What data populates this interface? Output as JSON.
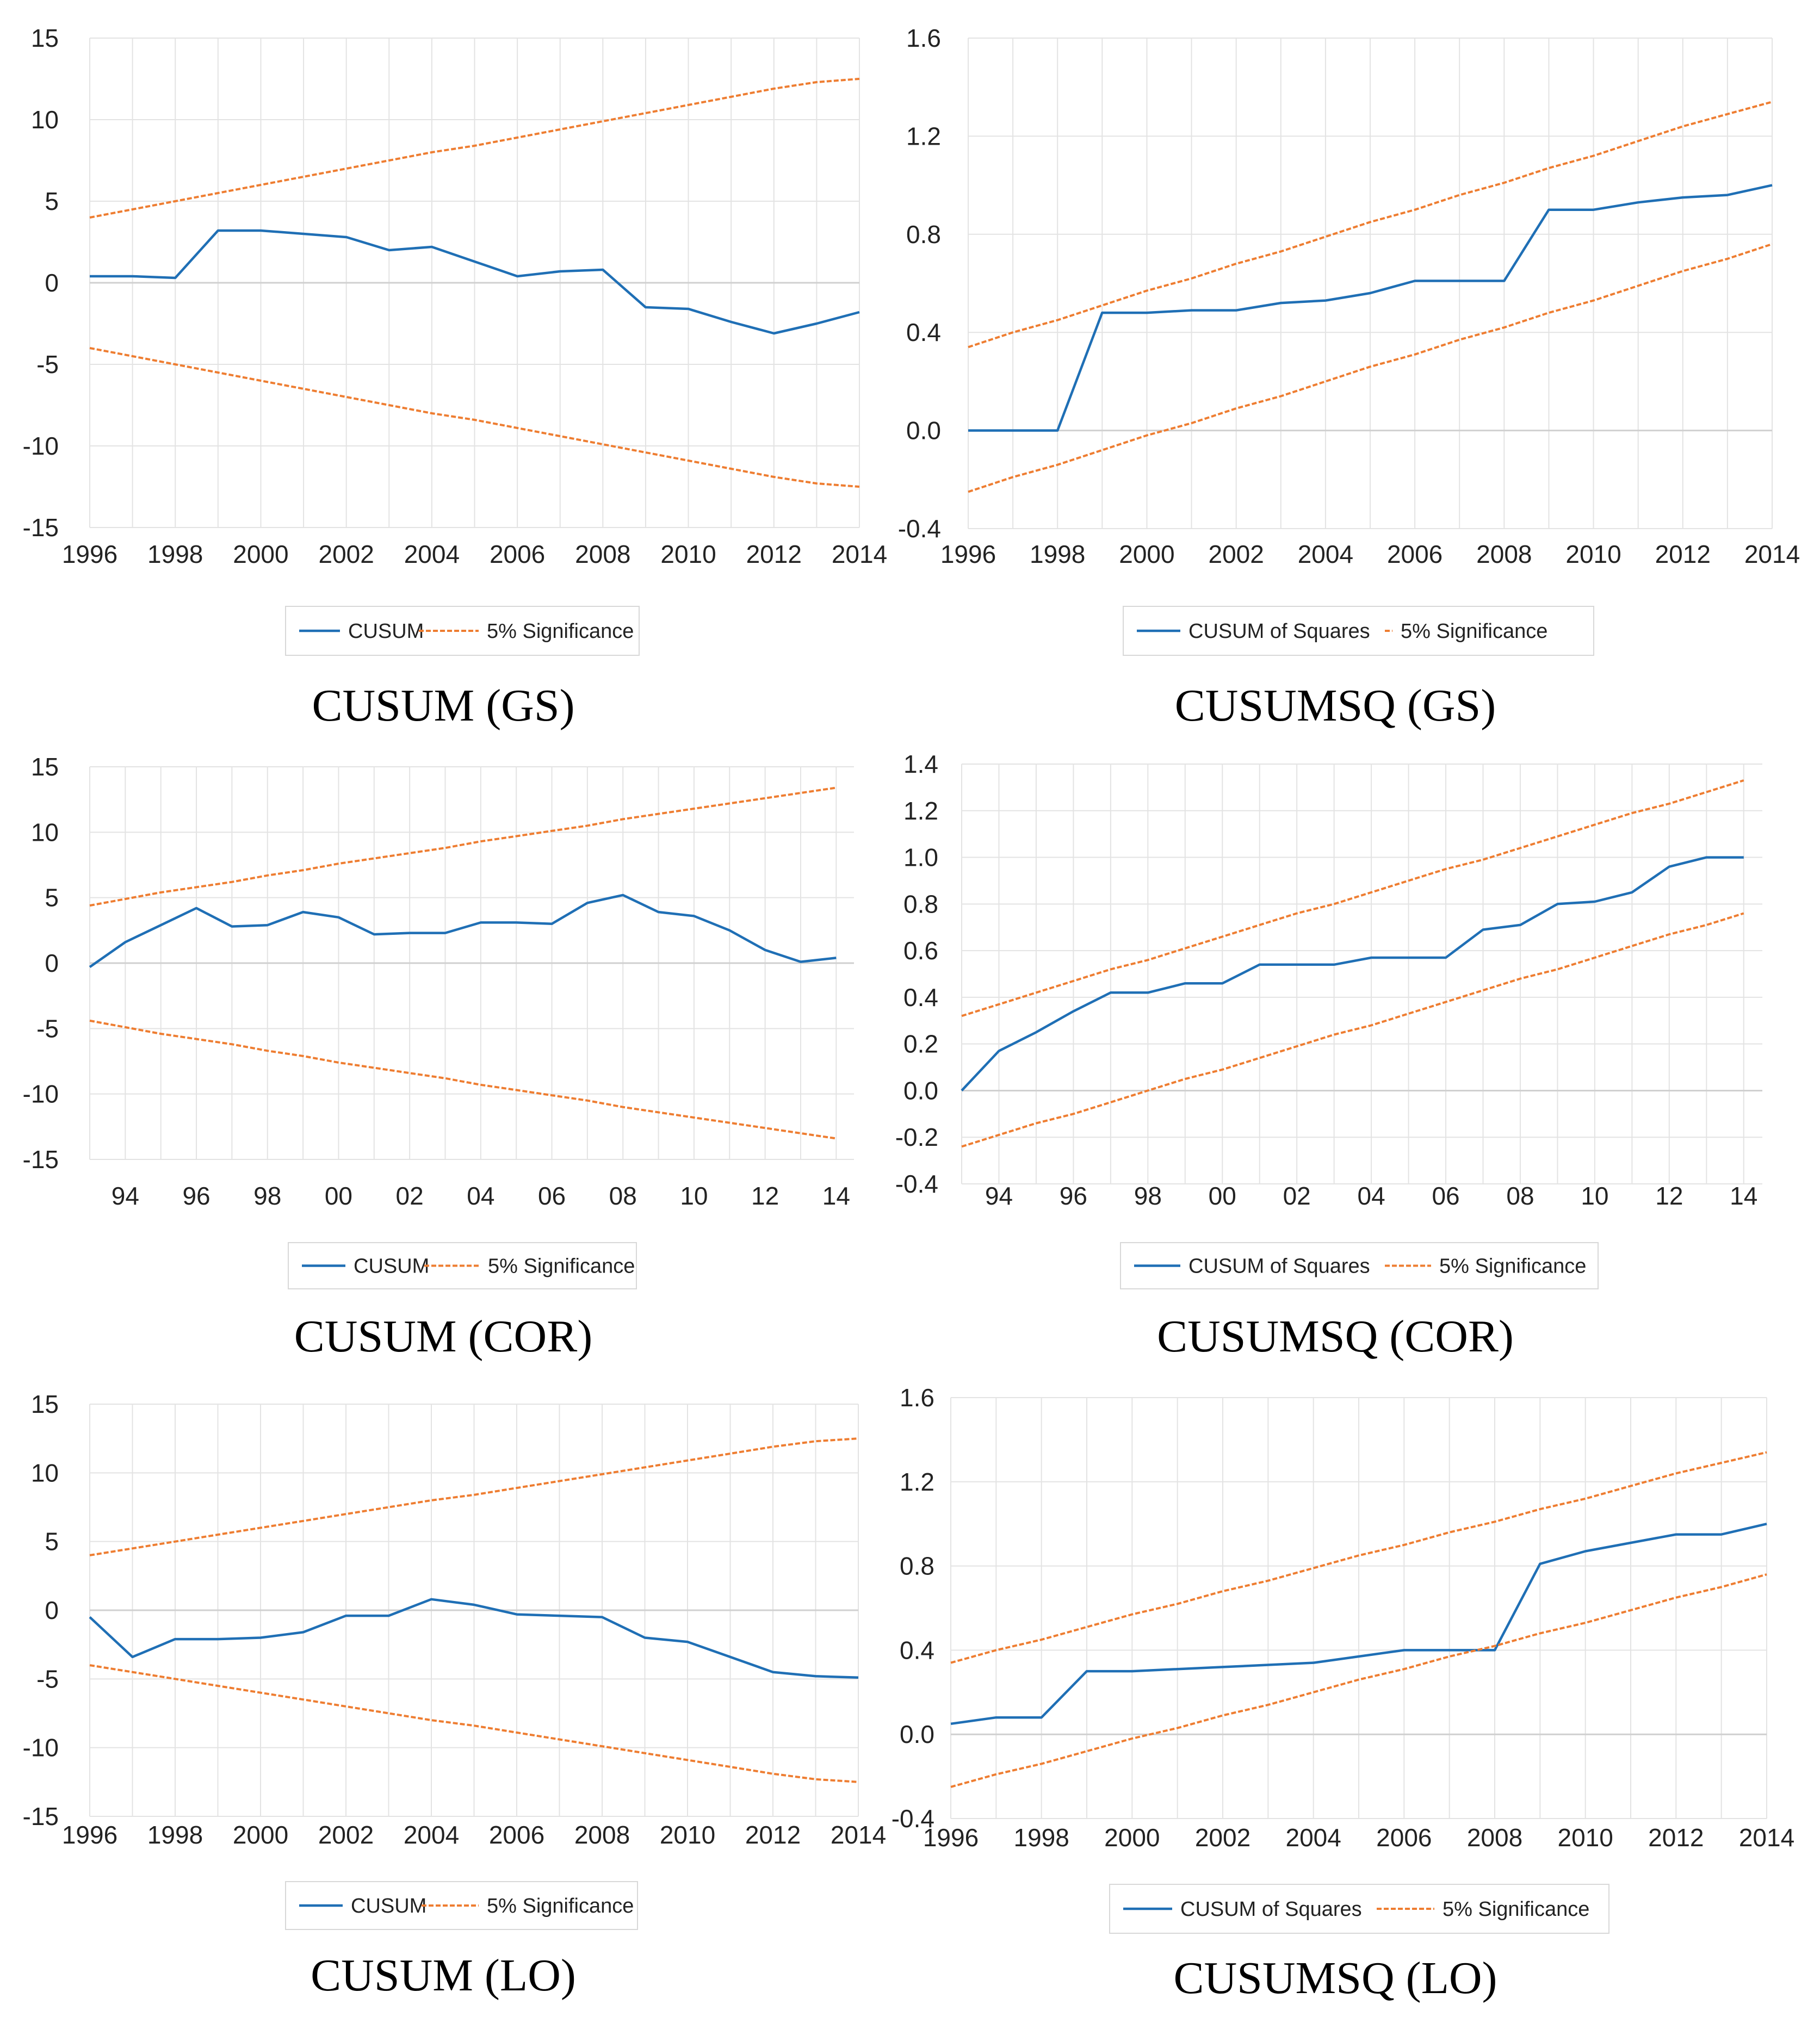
{
  "figure": {
    "colors": {
      "cusum": "#1f6fb5",
      "bound": "#ee7d31",
      "grid": "#e3e3e3",
      "axis": "#d0d0d0"
    }
  },
  "chart_data": [
    {
      "type": "line",
      "caption": "CUSUM (GS)",
      "x": [
        1996,
        1997,
        1998,
        1999,
        2000,
        2001,
        2002,
        2003,
        2004,
        2005,
        2006,
        2007,
        2008,
        2009,
        2010,
        2011,
        2012,
        2013,
        2014
      ],
      "xlim": [
        1996,
        2014
      ],
      "xticks": [
        "1996",
        "1998",
        "2000",
        "2002",
        "2004",
        "2006",
        "2008",
        "2010",
        "2012",
        "2014"
      ],
      "xtick_values": [
        1996,
        1998,
        2000,
        2002,
        2004,
        2006,
        2008,
        2010,
        2012,
        2014
      ],
      "ylim": [
        -15,
        15
      ],
      "yticks": [
        15,
        10,
        5,
        0,
        -5,
        -10,
        -15
      ],
      "ytick_labels": [
        "15",
        "10",
        "5",
        "0",
        "-5",
        "-10",
        "-15"
      ],
      "series": [
        {
          "name": "CUSUM",
          "style": "solid",
          "values": [
            0.4,
            0.4,
            0.3,
            3.2,
            3.2,
            3.0,
            2.8,
            2.0,
            2.2,
            1.3,
            0.4,
            0.7,
            0.8,
            -1.5,
            -1.6,
            -2.4,
            -3.1,
            -2.5,
            -1.8
          ]
        },
        {
          "name": "5% Significance",
          "style": "dashed",
          "values": [
            4.0,
            4.5,
            5.0,
            5.5,
            6.0,
            6.5,
            7.0,
            7.5,
            8.0,
            8.4,
            8.9,
            9.4,
            9.9,
            10.4,
            10.9,
            11.4,
            11.9,
            12.3,
            12.5
          ]
        },
        {
          "name": "5% Significance lower",
          "style": "dashed",
          "values": [
            -4.0,
            -4.5,
            -5.0,
            -5.5,
            -6.0,
            -6.5,
            -7.0,
            -7.5,
            -8.0,
            -8.4,
            -8.9,
            -9.4,
            -9.9,
            -10.4,
            -10.9,
            -11.4,
            -11.9,
            -12.3,
            -12.5
          ]
        }
      ],
      "legend": [
        "CUSUM",
        "5% Significance"
      ]
    },
    {
      "type": "line",
      "caption": "CUSUMSQ (GS)",
      "x": [
        1996,
        1997,
        1998,
        1999,
        2000,
        2001,
        2002,
        2003,
        2004,
        2005,
        2006,
        2007,
        2008,
        2009,
        2010,
        2011,
        2012,
        2013,
        2014
      ],
      "xlim": [
        1996,
        2014
      ],
      "xticks": [
        "1996",
        "1998",
        "2000",
        "2002",
        "2004",
        "2006",
        "2008",
        "2010",
        "2012",
        "2014"
      ],
      "xtick_values": [
        1996,
        1998,
        2000,
        2002,
        2004,
        2006,
        2008,
        2010,
        2012,
        2014
      ],
      "ylim": [
        -0.4,
        1.6
      ],
      "yticks": [
        1.6,
        1.2,
        0.8,
        0.4,
        0.0,
        -0.4
      ],
      "ytick_labels": [
        "1.6",
        "1.2",
        "0.8",
        "0.4",
        "0.0",
        "-0.4"
      ],
      "series": [
        {
          "name": "CUSUM of Squares",
          "style": "solid",
          "values": [
            0.0,
            0.0,
            0.0,
            0.48,
            0.48,
            0.49,
            0.49,
            0.52,
            0.53,
            0.56,
            0.61,
            0.61,
            0.61,
            0.9,
            0.9,
            0.93,
            0.95,
            0.96,
            1.0
          ]
        },
        {
          "name": "5% Significance",
          "style": "dashed",
          "values": [
            0.34,
            0.4,
            0.45,
            0.51,
            0.57,
            0.62,
            0.68,
            0.73,
            0.79,
            0.85,
            0.9,
            0.96,
            1.01,
            1.07,
            1.12,
            1.18,
            1.24,
            1.29,
            1.34
          ]
        },
        {
          "name": "5% Significance lower",
          "style": "dashed",
          "values": [
            -0.25,
            -0.19,
            -0.14,
            -0.08,
            -0.02,
            0.03,
            0.09,
            0.14,
            0.2,
            0.26,
            0.31,
            0.37,
            0.42,
            0.48,
            0.53,
            0.59,
            0.65,
            0.7,
            0.76
          ]
        }
      ],
      "legend": [
        "CUSUM of Squares",
        "5% Significance"
      ]
    },
    {
      "type": "line",
      "caption": "CUSUM (COR)",
      "x": [
        1993,
        1994,
        1995,
        1996,
        1997,
        1998,
        1999,
        2000,
        2001,
        2002,
        2003,
        2004,
        2005,
        2006,
        2007,
        2008,
        2009,
        2010,
        2011,
        2012,
        2013,
        2014
      ],
      "xlim": [
        1993,
        2014.5
      ],
      "xticks": [
        "94",
        "96",
        "98",
        "00",
        "02",
        "04",
        "06",
        "08",
        "10",
        "12",
        "14"
      ],
      "xtick_values": [
        1994,
        1996,
        1998,
        2000,
        2002,
        2004,
        2006,
        2008,
        2010,
        2012,
        2014
      ],
      "ylim": [
        -15,
        15
      ],
      "yticks": [
        15,
        10,
        5,
        0,
        -5,
        -10,
        -15
      ],
      "ytick_labels": [
        "15",
        "10",
        "5",
        "0",
        "-5",
        "-10",
        "-15"
      ],
      "series": [
        {
          "name": "CUSUM",
          "style": "solid",
          "values": [
            -0.3,
            1.6,
            2.9,
            4.2,
            2.8,
            2.9,
            3.9,
            3.5,
            2.2,
            2.3,
            2.3,
            3.1,
            3.1,
            3.0,
            4.6,
            5.2,
            3.9,
            3.6,
            2.5,
            1.0,
            0.1,
            0.4
          ]
        },
        {
          "name": "5% Significance",
          "style": "dashed",
          "values": [
            4.4,
            4.9,
            5.4,
            5.8,
            6.2,
            6.7,
            7.1,
            7.6,
            8.0,
            8.4,
            8.8,
            9.3,
            9.7,
            10.1,
            10.5,
            11.0,
            11.4,
            11.8,
            12.2,
            12.6,
            13.0,
            13.4
          ]
        },
        {
          "name": "5% Significance lower",
          "style": "dashed",
          "values": [
            -4.4,
            -4.9,
            -5.4,
            -5.8,
            -6.2,
            -6.7,
            -7.1,
            -7.6,
            -8.0,
            -8.4,
            -8.8,
            -9.3,
            -9.7,
            -10.1,
            -10.5,
            -11.0,
            -11.4,
            -11.8,
            -12.2,
            -12.6,
            -13.0,
            -13.4
          ]
        }
      ],
      "legend": [
        "CUSUM",
        "5% Significance"
      ]
    },
    {
      "type": "line",
      "caption": "CUSUMSQ (COR)",
      "x": [
        1993,
        1994,
        1995,
        1996,
        1997,
        1998,
        1999,
        2000,
        2001,
        2002,
        2003,
        2004,
        2005,
        2006,
        2007,
        2008,
        2009,
        2010,
        2011,
        2012,
        2013,
        2014
      ],
      "xlim": [
        1993,
        2014.5
      ],
      "xticks": [
        "94",
        "96",
        "98",
        "00",
        "02",
        "04",
        "06",
        "08",
        "10",
        "12",
        "14"
      ],
      "xtick_values": [
        1994,
        1996,
        1998,
        2000,
        2002,
        2004,
        2006,
        2008,
        2010,
        2012,
        2014
      ],
      "ylim": [
        -0.4,
        1.4
      ],
      "yticks": [
        1.4,
        1.2,
        1.0,
        0.8,
        0.6,
        0.4,
        0.2,
        0.0,
        -0.2,
        -0.4
      ],
      "ytick_labels": [
        "1.4",
        "1.2",
        "1.0",
        "0.8",
        "0.6",
        "0.4",
        "0.2",
        "0.0",
        "-0.2",
        "-0.4"
      ],
      "series": [
        {
          "name": "CUSUM of Squares",
          "style": "solid",
          "values": [
            0.0,
            0.17,
            0.25,
            0.34,
            0.42,
            0.42,
            0.46,
            0.46,
            0.54,
            0.54,
            0.54,
            0.57,
            0.57,
            0.57,
            0.69,
            0.71,
            0.8,
            0.81,
            0.85,
            0.96,
            1.0,
            1.0
          ]
        },
        {
          "name": "5% Significance",
          "style": "dashed",
          "values": [
            0.32,
            0.37,
            0.42,
            0.47,
            0.52,
            0.56,
            0.61,
            0.66,
            0.71,
            0.76,
            0.8,
            0.85,
            0.9,
            0.95,
            0.99,
            1.04,
            1.09,
            1.14,
            1.19,
            1.23,
            1.28,
            1.33
          ]
        },
        {
          "name": "5% Significance lower",
          "style": "dashed",
          "values": [
            -0.24,
            -0.19,
            -0.14,
            -0.1,
            -0.05,
            0.0,
            0.05,
            0.09,
            0.14,
            0.19,
            0.24,
            0.28,
            0.33,
            0.38,
            0.43,
            0.48,
            0.52,
            0.57,
            0.62,
            0.67,
            0.71,
            0.76
          ]
        }
      ],
      "legend": [
        "CUSUM of Squares",
        "5% Significance"
      ]
    },
    {
      "type": "line",
      "caption": "CUSUM (LO)",
      "x": [
        1996,
        1997,
        1998,
        1999,
        2000,
        2001,
        2002,
        2003,
        2004,
        2005,
        2006,
        2007,
        2008,
        2009,
        2010,
        2011,
        2012,
        2013,
        2014
      ],
      "xlim": [
        1996,
        2014
      ],
      "xticks": [
        "1996",
        "1998",
        "2000",
        "2002",
        "2004",
        "2006",
        "2008",
        "2010",
        "2012",
        "2014"
      ],
      "xtick_values": [
        1996,
        1998,
        2000,
        2002,
        2004,
        2006,
        2008,
        2010,
        2012,
        2014
      ],
      "ylim": [
        -15,
        15
      ],
      "yticks": [
        15,
        10,
        5,
        0,
        -5,
        -10,
        -15
      ],
      "ytick_labels": [
        "15",
        "10",
        "5",
        "0",
        "-5",
        "-10",
        "-15"
      ],
      "series": [
        {
          "name": "CUSUM",
          "style": "solid",
          "values": [
            -0.5,
            -3.4,
            -2.1,
            -2.1,
            -2.0,
            -1.6,
            -0.4,
            -0.4,
            0.8,
            0.4,
            -0.3,
            -0.4,
            -0.5,
            -2.0,
            -2.3,
            -3.4,
            -4.5,
            -4.8,
            -4.9
          ]
        },
        {
          "name": "5% Significance",
          "style": "dashed",
          "values": [
            4.0,
            4.5,
            5.0,
            5.5,
            6.0,
            6.5,
            7.0,
            7.5,
            8.0,
            8.4,
            8.9,
            9.4,
            9.9,
            10.4,
            10.9,
            11.4,
            11.9,
            12.3,
            12.5
          ]
        },
        {
          "name": "5% Significance lower",
          "style": "dashed",
          "values": [
            -4.0,
            -4.5,
            -5.0,
            -5.5,
            -6.0,
            -6.5,
            -7.0,
            -7.5,
            -8.0,
            -8.4,
            -8.9,
            -9.4,
            -9.9,
            -10.4,
            -10.9,
            -11.4,
            -11.9,
            -12.3,
            -12.5
          ]
        }
      ],
      "legend": [
        "CUSUM",
        "5% Significance"
      ]
    },
    {
      "type": "line",
      "caption": "CUSUMSQ (LO)",
      "x": [
        1996,
        1997,
        1998,
        1999,
        2000,
        2001,
        2002,
        2003,
        2004,
        2005,
        2006,
        2007,
        2008,
        2009,
        2010,
        2011,
        2012,
        2013,
        2014
      ],
      "xlim": [
        1996,
        2014
      ],
      "xticks": [
        "1996",
        "1998",
        "2000",
        "2002",
        "2004",
        "2006",
        "2008",
        "2010",
        "2012",
        "2014"
      ],
      "xtick_values": [
        1996,
        1998,
        2000,
        2002,
        2004,
        2006,
        2008,
        2010,
        2012,
        2014
      ],
      "ylim": [
        -0.4,
        1.6
      ],
      "yticks": [
        1.6,
        1.2,
        0.8,
        0.4,
        0.0,
        -0.4
      ],
      "ytick_labels": [
        "1.6",
        "1.2",
        "0.8",
        "0.4",
        "0.0",
        "-0.4"
      ],
      "series": [
        {
          "name": "CUSUM of Squares",
          "style": "solid",
          "values": [
            0.05,
            0.08,
            0.08,
            0.3,
            0.3,
            0.31,
            0.32,
            0.33,
            0.34,
            0.37,
            0.4,
            0.4,
            0.4,
            0.81,
            0.87,
            0.91,
            0.95,
            0.95,
            1.0
          ]
        },
        {
          "name": "5% Significance",
          "style": "dashed",
          "values": [
            0.34,
            0.4,
            0.45,
            0.51,
            0.57,
            0.62,
            0.68,
            0.73,
            0.79,
            0.85,
            0.9,
            0.96,
            1.01,
            1.07,
            1.12,
            1.18,
            1.24,
            1.29,
            1.34
          ]
        },
        {
          "name": "5% Significance lower",
          "style": "dashed",
          "values": [
            -0.25,
            -0.19,
            -0.14,
            -0.08,
            -0.02,
            0.03,
            0.09,
            0.14,
            0.2,
            0.26,
            0.31,
            0.37,
            0.42,
            0.48,
            0.53,
            0.59,
            0.65,
            0.7,
            0.76
          ]
        }
      ],
      "legend": [
        "CUSUM of Squares",
        "5% Significance"
      ]
    }
  ]
}
